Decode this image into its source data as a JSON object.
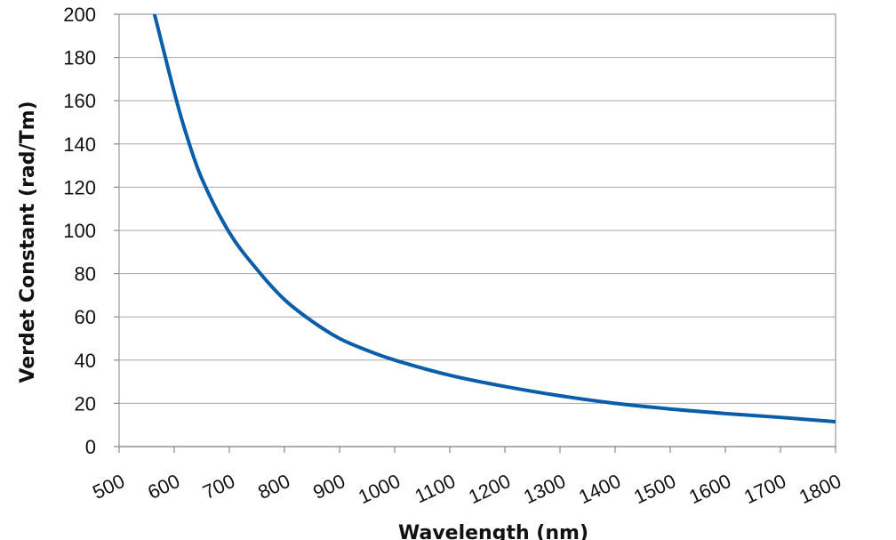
{
  "chart_data": {
    "type": "line",
    "title": "",
    "xlabel": "Wavelength (nm)",
    "ylabel": "Verdet Constant (rad/Tm)",
    "xlim": [
      500,
      1800
    ],
    "ylim": [
      0,
      200
    ],
    "xticks": [
      500,
      600,
      700,
      800,
      900,
      1000,
      1100,
      1200,
      1300,
      1400,
      1500,
      1600,
      1700,
      1800
    ],
    "yticks": [
      0,
      20,
      40,
      60,
      80,
      100,
      120,
      140,
      160,
      180,
      200
    ],
    "grid": "horizontal",
    "legend": "none",
    "series": [
      {
        "color": "#0a5da8",
        "x": [
          550,
          560,
          580,
          600,
          620,
          650,
          700,
          750,
          800,
          850,
          900,
          950,
          1000,
          1100,
          1200,
          1300,
          1400,
          1500,
          1600,
          1700,
          1800
        ],
        "y": [
          211,
          204,
          184,
          164,
          146,
          124,
          99,
          82,
          68,
          58,
          50,
          44.5,
          40,
          33,
          27.8,
          23.5,
          20,
          17.4,
          15.3,
          13.5,
          11.5
        ]
      }
    ]
  }
}
